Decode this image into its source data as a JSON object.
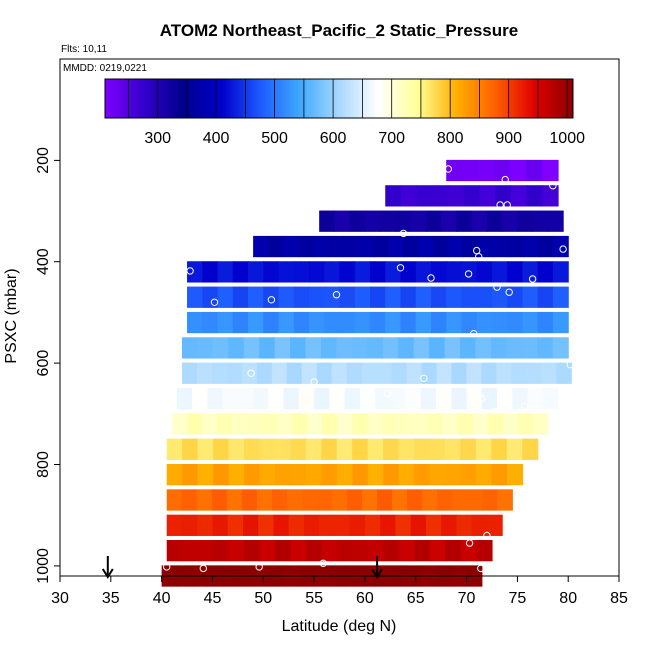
{
  "chart_data": {
    "type": "heatmap",
    "title": "ATOM2 Northeast_Pacific_2 Static_Pressure",
    "flights_label": "Flts: 10,11",
    "mmdd_label": "MMDD: 0219,0221",
    "xlabel": "Latitude (deg N)",
    "ylabel": "PSXC (mbar)",
    "xlim": [
      30,
      85
    ],
    "ylim": [
      1020,
      0
    ],
    "x_ticks": [
      30,
      35,
      40,
      45,
      50,
      55,
      60,
      65,
      70,
      75,
      80,
      85
    ],
    "y_ticks": [
      200,
      400,
      600,
      800,
      1000
    ],
    "colorbar": {
      "range": [
        210,
        1010
      ],
      "ticks": [
        300,
        400,
        500,
        600,
        700,
        800,
        900,
        1000
      ],
      "colors": [
        "#7f00ff",
        "#3300cc",
        "#00008b",
        "#0000cd",
        "#1e5bff",
        "#3fa9ff",
        "#a8d8ff",
        "#ffffff",
        "#ffff99",
        "#ffb000",
        "#ff6000",
        "#e00000",
        "#8b0000"
      ]
    },
    "bands": [
      {
        "pressure": 220,
        "lat_min": 68.0,
        "lat_max": 79.0,
        "value": 220
      },
      {
        "pressure": 270,
        "lat_min": 62.0,
        "lat_max": 79.0,
        "value": 270
      },
      {
        "pressure": 320,
        "lat_min": 55.5,
        "lat_max": 79.5,
        "value": 320
      },
      {
        "pressure": 370,
        "lat_min": 49.0,
        "lat_max": 80.0,
        "value": 370
      },
      {
        "pressure": 420,
        "lat_min": 42.5,
        "lat_max": 80.0,
        "value": 420
      },
      {
        "pressure": 470,
        "lat_min": 42.5,
        "lat_max": 80.0,
        "value": 470
      },
      {
        "pressure": 520,
        "lat_min": 42.5,
        "lat_max": 80.0,
        "value": 520
      },
      {
        "pressure": 570,
        "lat_min": 42.0,
        "lat_max": 80.0,
        "value": 570
      },
      {
        "pressure": 620,
        "lat_min": 42.0,
        "lat_max": 80.3,
        "value": 620
      },
      {
        "pressure": 670,
        "lat_min": 41.5,
        "lat_max": 79.0,
        "value": 670
      },
      {
        "pressure": 720,
        "lat_min": 41.0,
        "lat_max": 78.0,
        "value": 720
      },
      {
        "pressure": 770,
        "lat_min": 40.5,
        "lat_max": 77.0,
        "value": 770
      },
      {
        "pressure": 820,
        "lat_min": 40.5,
        "lat_max": 75.5,
        "value": 820
      },
      {
        "pressure": 870,
        "lat_min": 40.5,
        "lat_max": 74.5,
        "value": 870
      },
      {
        "pressure": 920,
        "lat_min": 40.5,
        "lat_max": 73.5,
        "value": 920
      },
      {
        "pressure": 970,
        "lat_min": 40.5,
        "lat_max": 72.5,
        "value": 970
      },
      {
        "pressure": 1020,
        "lat_min": 40.0,
        "lat_max": 71.5,
        "value": 1015
      }
    ],
    "points": [
      [
        68.2,
        217
      ],
      [
        73.8,
        238
      ],
      [
        78.5,
        250
      ],
      [
        73.3,
        288
      ],
      [
        74.0,
        288
      ],
      [
        63.8,
        344
      ],
      [
        71.0,
        378
      ],
      [
        71.2,
        390
      ],
      [
        79.5,
        375
      ],
      [
        42.8,
        418
      ],
      [
        63.5,
        412
      ],
      [
        66.5,
        432
      ],
      [
        70.2,
        424
      ],
      [
        76.5,
        434
      ],
      [
        73.0,
        450
      ],
      [
        74.2,
        460
      ],
      [
        45.2,
        480
      ],
      [
        50.8,
        475
      ],
      [
        57.2,
        465
      ],
      [
        70.7,
        542
      ],
      [
        80.2,
        603
      ],
      [
        48.8,
        620
      ],
      [
        55.0,
        637
      ],
      [
        62.2,
        660
      ],
      [
        65.8,
        630
      ],
      [
        70.5,
        665
      ],
      [
        71.5,
        670
      ],
      [
        72.8,
        695
      ],
      [
        75.7,
        685
      ],
      [
        40.8,
        730
      ],
      [
        70.3,
        955
      ],
      [
        72.0,
        940
      ],
      [
        40.5,
        1002
      ],
      [
        44.1,
        1005
      ],
      [
        49.6,
        1002
      ],
      [
        55.9,
        995
      ],
      [
        71.4,
        1005
      ]
    ],
    "markers": [
      34.7,
      61.2
    ]
  }
}
